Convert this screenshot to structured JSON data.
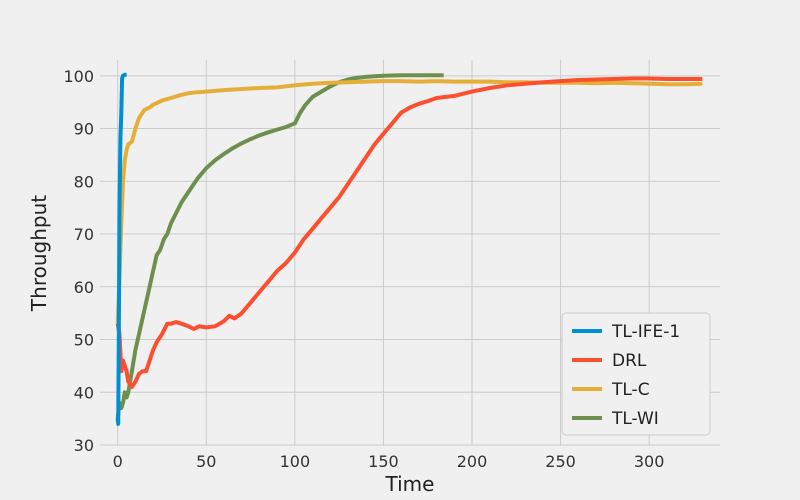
{
  "chart_data": {
    "type": "line",
    "title": "",
    "xlabel": "Time",
    "ylabel": "Throughput",
    "xlim": [
      -10,
      340
    ],
    "ylim": [
      30,
      103
    ],
    "xticks": [
      0,
      50,
      100,
      150,
      200,
      250,
      300
    ],
    "yticks": [
      30,
      40,
      50,
      60,
      70,
      80,
      90,
      100
    ],
    "grid": true,
    "legend_position": "lower-right",
    "series": [
      {
        "name": "TL-IFE-1",
        "color": "#008fd5",
        "x": [
          0,
          0.3,
          0.6,
          1,
          1.5,
          2,
          2.5,
          3,
          4,
          5
        ],
        "y": [
          35,
          34,
          50,
          75,
          88,
          93,
          99.5,
          100,
          100.2,
          100.2
        ]
      },
      {
        "name": "DRL",
        "color": "#fc4f30",
        "x": [
          0,
          1,
          2,
          3,
          4,
          5,
          6,
          8,
          10,
          12,
          14,
          16,
          18,
          20,
          22,
          25,
          28,
          30,
          33,
          36,
          40,
          43,
          46,
          50,
          55,
          60,
          63,
          66,
          70,
          75,
          80,
          85,
          90,
          95,
          100,
          105,
          110,
          115,
          120,
          125,
          130,
          135,
          140,
          145,
          150,
          155,
          160,
          165,
          170,
          175,
          180,
          190,
          200,
          210,
          220,
          230,
          240,
          250,
          260,
          270,
          280,
          290,
          300,
          310,
          320,
          330
        ],
        "y": [
          53,
          51,
          44,
          46,
          45,
          44,
          42,
          41,
          42,
          43.5,
          44,
          44,
          46,
          48,
          49.5,
          51,
          53,
          53,
          53.3,
          53,
          52.5,
          52,
          52.5,
          52.3,
          52.5,
          53.5,
          54.5,
          54,
          55,
          57,
          59,
          61,
          63,
          64.5,
          66.5,
          69,
          71,
          73,
          75,
          77,
          79.5,
          82,
          84.5,
          87,
          89,
          91,
          93,
          94,
          94.7,
          95.2,
          95.8,
          96.2,
          97,
          97.7,
          98.2,
          98.5,
          98.8,
          99,
          99.2,
          99.3,
          99.4,
          99.5,
          99.5,
          99.4,
          99.4,
          99.4
        ]
      },
      {
        "name": "TL-C",
        "color": "#e5ae38",
        "x": [
          0,
          1,
          2,
          3,
          4,
          5,
          6,
          8,
          10,
          12,
          15,
          18,
          20,
          25,
          30,
          35,
          40,
          45,
          50,
          60,
          70,
          80,
          90,
          100,
          110,
          120,
          130,
          140,
          150,
          160,
          170,
          180,
          190,
          200,
          210,
          220,
          230,
          240,
          250,
          260,
          270,
          280,
          290,
          300,
          310,
          320,
          330
        ],
        "y": [
          53,
          62,
          72,
          80,
          84,
          86,
          87,
          87.5,
          90,
          92,
          93.5,
          94,
          94.5,
          95.3,
          95.8,
          96.3,
          96.7,
          96.9,
          97,
          97.3,
          97.5,
          97.7,
          97.8,
          98.2,
          98.5,
          98.7,
          98.8,
          98.9,
          99,
          99,
          98.9,
          99,
          98.9,
          98.9,
          98.9,
          98.8,
          98.8,
          98.7,
          98.7,
          98.7,
          98.6,
          98.7,
          98.6,
          98.5,
          98.4,
          98.4,
          98.5
        ]
      },
      {
        "name": "TL-WI",
        "color": "#6d904f",
        "x": [
          0,
          1,
          2,
          3,
          4,
          5,
          6,
          7,
          8,
          10,
          12,
          14,
          16,
          18,
          20,
          22,
          24,
          26,
          28,
          30,
          33,
          36,
          40,
          45,
          50,
          55,
          60,
          65,
          70,
          75,
          80,
          85,
          90,
          95,
          100,
          103,
          106,
          110,
          115,
          120,
          125,
          130,
          135,
          140,
          145,
          150,
          160,
          170,
          180,
          184
        ],
        "y": [
          35,
          38,
          37,
          38,
          40,
          39,
          40,
          42,
          44,
          48,
          51,
          54,
          57,
          60,
          63,
          66,
          67,
          69,
          70,
          72,
          74,
          76,
          78,
          80.5,
          82.5,
          84,
          85.2,
          86.3,
          87.2,
          88,
          88.7,
          89.3,
          89.8,
          90.3,
          91,
          93,
          94.5,
          96,
          97,
          98,
          98.8,
          99.3,
          99.6,
          99.8,
          99.9,
          100,
          100.1,
          100.1,
          100.1,
          100.1
        ]
      }
    ]
  }
}
